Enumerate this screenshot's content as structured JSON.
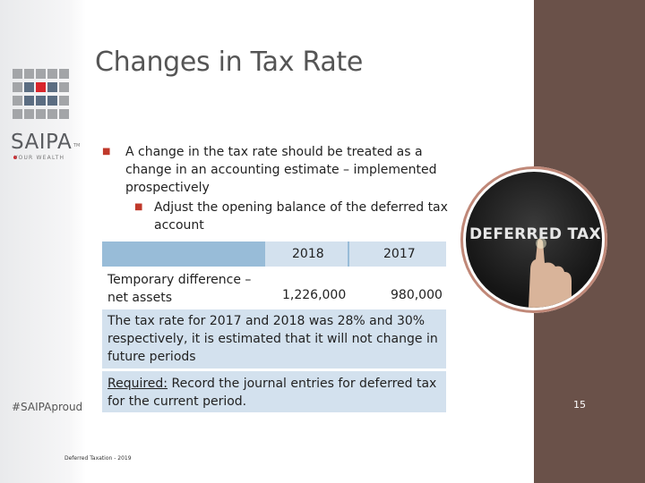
{
  "slide": {
    "title": "Changes in Tax Rate",
    "slide_number": "15",
    "footer": "Deferred Taxation - 2019"
  },
  "brand": {
    "logo_text": "SAIPA",
    "logo_tm": "TM",
    "logo_tagline": "YOUR WEALTH",
    "hashtag": "#SAIPAproud",
    "accent_color": "#d9252b",
    "panel_color": "#6a5149"
  },
  "bullets": {
    "main": "A change in the tax rate should be treated as a change in an accounting estimate – implemented prospectively",
    "sub": "Adjust the opening balance of the deferred tax account"
  },
  "table": {
    "headers": [
      "",
      "2018",
      "2017"
    ],
    "row": {
      "label": "Temporary difference – net assets",
      "value_2018": "1,226,000",
      "value_2017": "980,000"
    }
  },
  "note": "The tax rate for 2017 and 2018 was 28% and 30% respectively, it is estimated that it will not change in future periods",
  "required": {
    "label": "Required:",
    "text": " Record the journal entries for deferred tax for the current period."
  },
  "image": {
    "text": "DEFERRED TAX",
    "icon": "hand-pointing-icon"
  }
}
